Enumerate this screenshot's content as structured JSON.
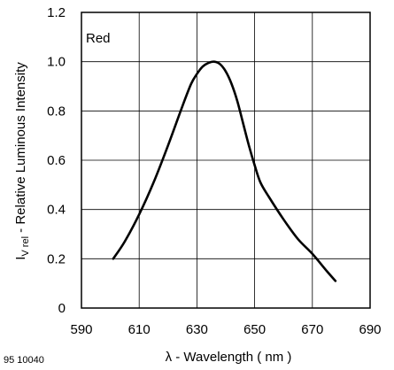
{
  "chart_data": {
    "type": "line",
    "xlabel_symbol": "λ",
    "xlabel_text": " - Wavelength ( nm )",
    "ylabel_main": "I",
    "ylabel_sub": "V rel",
    "ylabel_rest": " - Relative Luminous Intensity",
    "annotation": "Red",
    "figure_id": "95 10040",
    "xlim": [
      590,
      690
    ],
    "ylim": [
      0,
      1.2
    ],
    "xticks": [
      590,
      610,
      630,
      650,
      670,
      690
    ],
    "yticks": [
      0,
      0.2,
      0.4,
      0.6,
      0.8,
      1.0,
      1.2
    ],
    "ytick_labels": [
      "0",
      "0.2",
      "0.4",
      "0.6",
      "0.8",
      "1.0",
      "1.2"
    ],
    "grid": true,
    "series": [
      {
        "color": "#000000",
        "x": [
          601,
          605,
          610,
          615,
          620,
          625,
          628,
          630,
          632,
          634,
          636,
          638,
          640,
          642,
          644,
          646,
          648,
          650,
          652,
          655,
          660,
          665,
          670,
          675,
          678
        ],
        "y": [
          0.2,
          0.27,
          0.38,
          0.51,
          0.66,
          0.82,
          0.91,
          0.95,
          0.98,
          0.995,
          1.0,
          0.99,
          0.96,
          0.91,
          0.84,
          0.75,
          0.66,
          0.58,
          0.51,
          0.45,
          0.36,
          0.28,
          0.22,
          0.15,
          0.11
        ]
      }
    ]
  }
}
